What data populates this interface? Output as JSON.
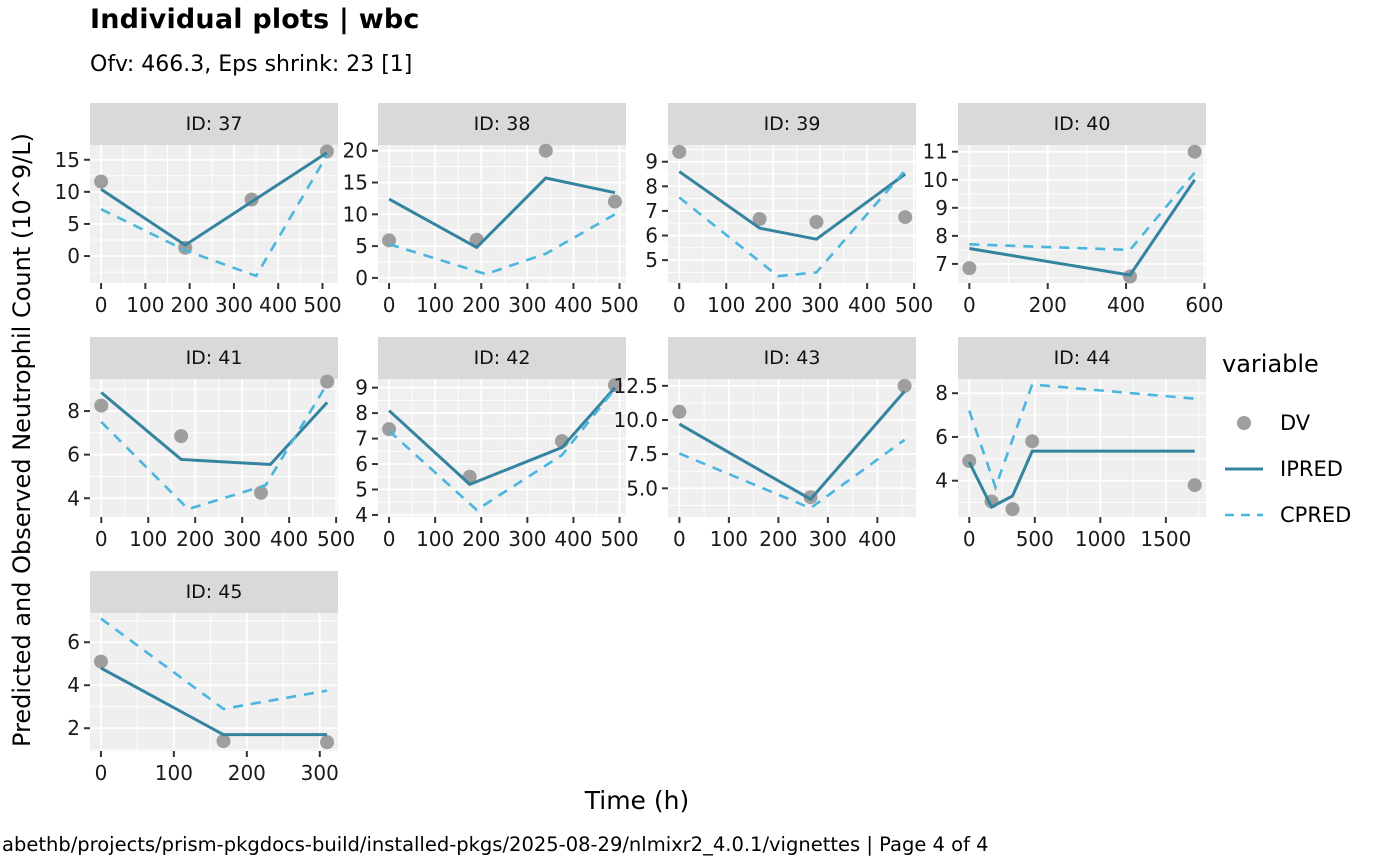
{
  "header": {
    "title": "Individual plots | wbc",
    "subtitle": "Ofv: 466.3, Eps shrink: 23 [1]"
  },
  "footer": {
    "text": "abethb/projects/prism-pkgdocs-build/installed-pkgs/2025-08-29/nlmixr2_4.0.1/vignettes | Page 4 of 4"
  },
  "chart_data": {
    "type": "line",
    "title": "Individual plots | wbc",
    "subtitle": "Ofv: 466.3, Eps shrink: 23 [1]",
    "xlabel": "Time (h)",
    "ylabel": "Predicted and Observed Neutrophil Count (10^9/L)",
    "grid": "on",
    "legend": {
      "title": "variable",
      "position": "right",
      "entries": [
        {
          "label": "DV",
          "glyph": "point"
        },
        {
          "label": "IPRED",
          "glyph": "solid-line"
        },
        {
          "label": "CPRED",
          "glyph": "dashed-line"
        }
      ]
    },
    "colors": {
      "dv": "#9e9e9e",
      "ipred": "#34839f",
      "cpred": "#4ab5de",
      "strip_bg": "#d9d9d9",
      "panel_bg": "#efefef",
      "grid": "#ffffff",
      "tick": "#333333",
      "text": "#1a1a1a"
    },
    "panels": [
      {
        "label": "ID: 37",
        "xlim": [
          -25,
          535
        ],
        "ylim": [
          -4.2,
          17.3
        ],
        "xticks": [
          0,
          100,
          200,
          300,
          400,
          500
        ],
        "yticks": [
          "0",
          "5",
          "10",
          "15"
        ],
        "series": {
          "DV": [
            [
              0,
              11.6
            ],
            [
              190,
              1.3
            ],
            [
              340,
              8.8
            ],
            [
              510,
              16.3
            ]
          ],
          "IPRED": [
            [
              0,
              10.4
            ],
            [
              190,
              1.7
            ],
            [
              510,
              16.1
            ]
          ],
          "CPRED": [
            [
              0,
              7.3
            ],
            [
              190,
              0.9
            ],
            [
              350,
              -3.1
            ],
            [
              510,
              15.7
            ]
          ]
        }
      },
      {
        "label": "ID: 38",
        "xlim": [
          -24,
          514
        ],
        "ylim": [
          -0.8,
          20.9
        ],
        "xticks": [
          0,
          100,
          200,
          300,
          400,
          500
        ],
        "yticks": [
          "0",
          "5",
          "10",
          "15",
          "20"
        ],
        "series": {
          "DV": [
            [
              0,
              5.9
            ],
            [
              190,
              6.0
            ],
            [
              340,
              20.0
            ],
            [
              490,
              12.0
            ]
          ],
          "IPRED": [
            [
              0,
              12.4
            ],
            [
              190,
              4.8
            ],
            [
              340,
              15.7
            ],
            [
              490,
              13.4
            ]
          ],
          "CPRED": [
            [
              0,
              5.3
            ],
            [
              210,
              0.6
            ],
            [
              340,
              3.8
            ],
            [
              490,
              10.0
            ]
          ]
        }
      },
      {
        "label": "ID: 39",
        "xlim": [
          -24,
          504
        ],
        "ylim": [
          4.07,
          9.68
        ],
        "xticks": [
          0,
          100,
          200,
          300,
          400,
          500
        ],
        "yticks": [
          "5",
          "6",
          "7",
          "8",
          "9"
        ],
        "series": {
          "DV": [
            [
              0,
              9.4
            ],
            [
              171,
              6.67
            ],
            [
              292,
              6.55
            ],
            [
              481,
              6.75
            ]
          ],
          "IPRED": [
            [
              0,
              8.6
            ],
            [
              171,
              6.3
            ],
            [
              292,
              5.85
            ],
            [
              481,
              8.5
            ]
          ],
          "CPRED": [
            [
              0,
              7.55
            ],
            [
              210,
              4.35
            ],
            [
              292,
              4.5
            ],
            [
              481,
              8.65
            ]
          ]
        }
      },
      {
        "label": "ID: 40",
        "xlim": [
          -29,
          604
        ],
        "ylim": [
          6.32,
          11.24
        ],
        "xticks": [
          0,
          200,
          400,
          600
        ],
        "yticks": [
          "7",
          "8",
          "9",
          "10",
          "11"
        ],
        "series": {
          "DV": [
            [
              0,
              6.85
            ],
            [
              410,
              6.55
            ],
            [
              575,
              11.0
            ]
          ],
          "IPRED": [
            [
              0,
              7.55
            ],
            [
              410,
              6.6
            ],
            [
              575,
              10.0
            ]
          ],
          "CPRED": [
            [
              0,
              7.7
            ],
            [
              410,
              7.5
            ],
            [
              575,
              10.25
            ]
          ]
        }
      },
      {
        "label": "ID: 41",
        "xlim": [
          -24,
          504
        ],
        "ylim": [
          3.14,
          9.47
        ],
        "xticks": [
          0,
          100,
          200,
          300,
          400,
          500
        ],
        "yticks": [
          "4",
          "6",
          "8"
        ],
        "series": {
          "DV": [
            [
              0,
              8.25
            ],
            [
              170,
              6.85
            ],
            [
              340,
              4.25
            ],
            [
              481,
              9.35
            ]
          ],
          "IPRED": [
            [
              0,
              8.85
            ],
            [
              170,
              5.78
            ],
            [
              360,
              5.55
            ],
            [
              481,
              8.4
            ]
          ],
          "CPRED": [
            [
              0,
              7.5
            ],
            [
              185,
              3.5
            ],
            [
              350,
              4.6
            ],
            [
              481,
              9.25
            ]
          ]
        }
      },
      {
        "label": "ID: 42",
        "xlim": [
          -24,
          514
        ],
        "ylim": [
          3.92,
          9.34
        ],
        "xticks": [
          0,
          100,
          200,
          300,
          400,
          500
        ],
        "yticks": [
          "4",
          "5",
          "6",
          "7",
          "8",
          "9"
        ],
        "series": {
          "DV": [
            [
              0,
              7.37
            ],
            [
              175,
              5.5
            ],
            [
              375,
              6.9
            ],
            [
              490,
              9.1
            ]
          ],
          "IPRED": [
            [
              0,
              8.1
            ],
            [
              175,
              5.2
            ],
            [
              375,
              6.65
            ],
            [
              490,
              9.0
            ]
          ],
          "CPRED": [
            [
              0,
              7.3
            ],
            [
              190,
              4.2
            ],
            [
              375,
              6.35
            ],
            [
              490,
              8.95
            ]
          ]
        }
      },
      {
        "label": "ID: 43",
        "xlim": [
          -23,
          478
        ],
        "ylim": [
          2.9,
          13.0
        ],
        "xticks": [
          0,
          100,
          200,
          300,
          400
        ],
        "yticks": [
          "5.0",
          "7.5",
          "10.0",
          "12.5"
        ],
        "series": {
          "DV": [
            [
              0,
              10.6
            ],
            [
              265,
              4.35
            ],
            [
              455,
              12.5
            ]
          ],
          "IPRED": [
            [
              0,
              9.7
            ],
            [
              265,
              4.2
            ],
            [
              455,
              12.1
            ]
          ],
          "CPRED": [
            [
              0,
              7.55
            ],
            [
              265,
              3.55
            ],
            [
              455,
              8.55
            ]
          ]
        }
      },
      {
        "label": "ID: 44",
        "xlim": [
          -86,
          1806
        ],
        "ylim": [
          2.34,
          8.65
        ],
        "xticks": [
          0,
          500,
          1000,
          1500
        ],
        "yticks": [
          "4",
          "6",
          "8"
        ],
        "series": {
          "DV": [
            [
              0,
              4.9
            ],
            [
              170,
              3.05
            ],
            [
              330,
              2.7
            ],
            [
              480,
              5.8
            ],
            [
              1720,
              3.8
            ]
          ],
          "IPRED": [
            [
              0,
              4.85
            ],
            [
              170,
              2.8
            ],
            [
              330,
              3.3
            ],
            [
              480,
              5.35
            ],
            [
              1720,
              5.35
            ]
          ],
          "CPRED": [
            [
              0,
              7.2
            ],
            [
              200,
              3.7
            ],
            [
              480,
              8.4
            ],
            [
              1720,
              7.75
            ]
          ]
        }
      },
      {
        "label": "ID: 45",
        "xlim": [
          -15,
          325
        ],
        "ylim": [
          0.94,
          7.36
        ],
        "xticks": [
          0,
          100,
          200,
          300
        ],
        "yticks": [
          "2",
          "4",
          "6"
        ],
        "series": {
          "DV": [
            [
              0,
              5.1
            ],
            [
              168,
              1.4
            ],
            [
              310,
              1.35
            ]
          ],
          "IPRED": [
            [
              0,
              4.8
            ],
            [
              168,
              1.7
            ],
            [
              310,
              1.7
            ]
          ],
          "CPRED": [
            [
              0,
              7.1
            ],
            [
              168,
              2.9
            ],
            [
              310,
              3.75
            ]
          ]
        }
      }
    ]
  }
}
